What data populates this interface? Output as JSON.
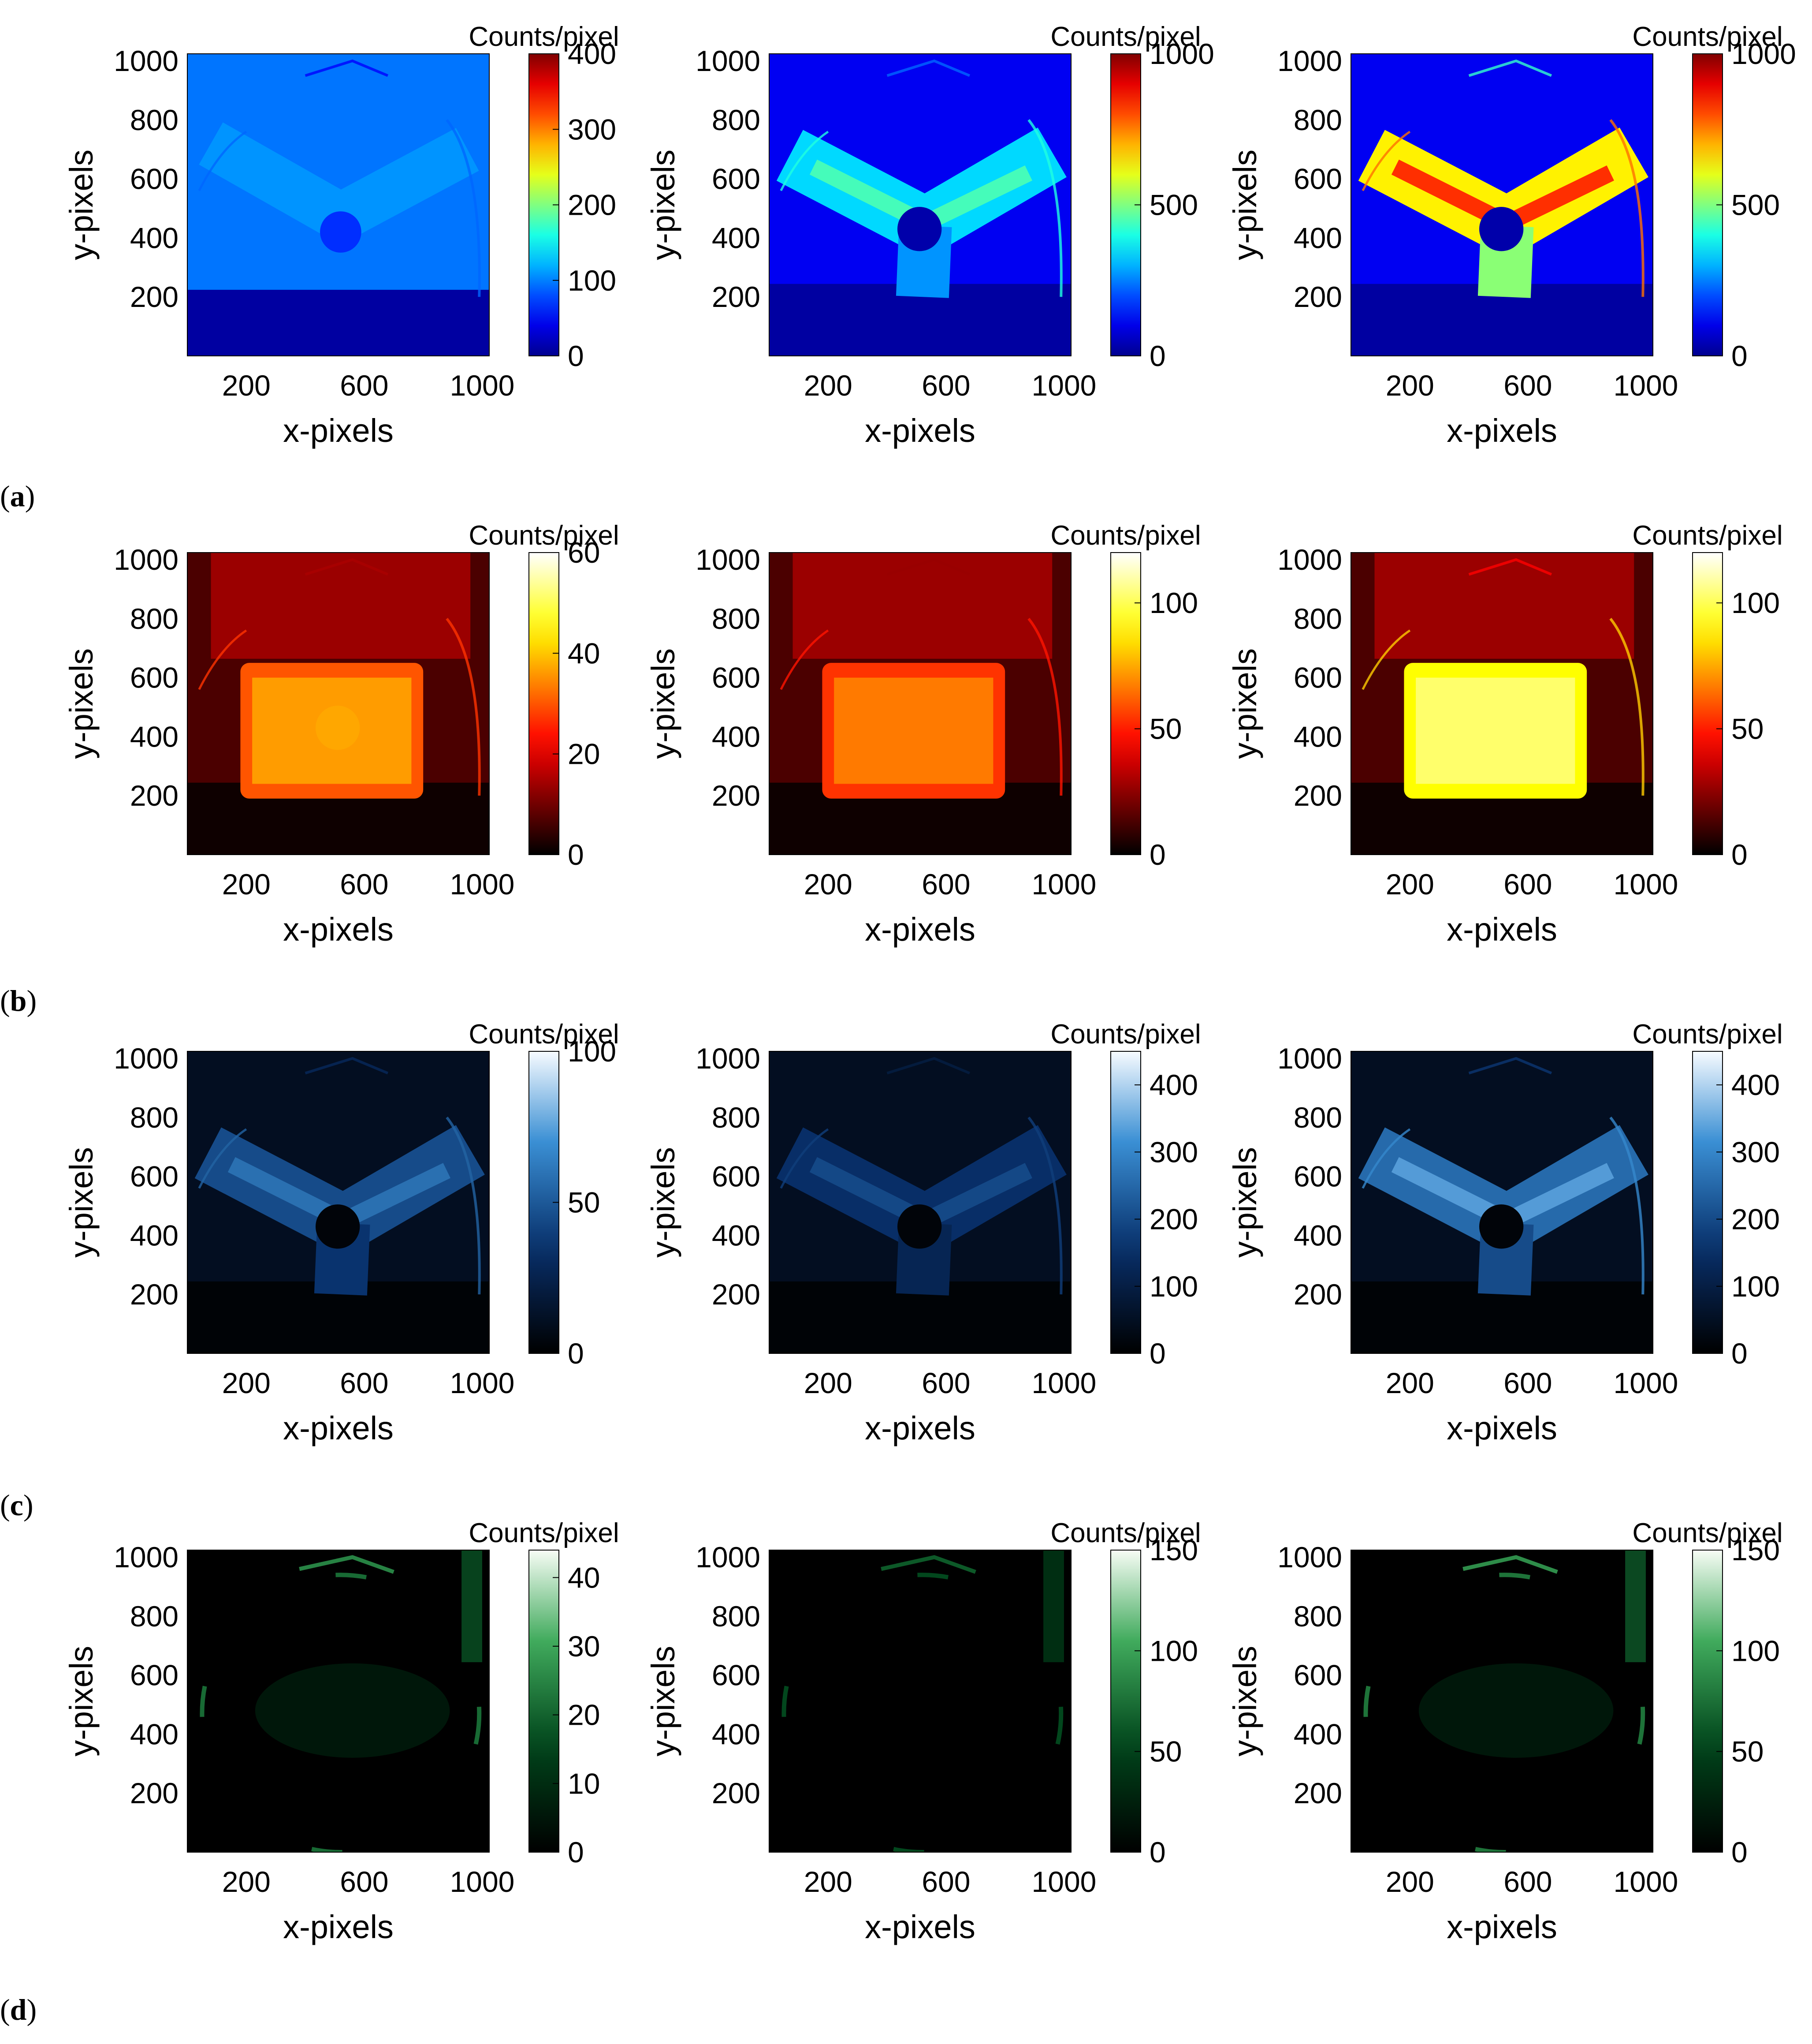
{
  "figure": {
    "row_labels": [
      "a",
      "b",
      "c",
      "d"
    ]
  },
  "chart_data": [
    {
      "type": "heatmap",
      "panel": "a-1",
      "colormap": "jet",
      "colorbar_title": "Counts/pixel",
      "colorbar_ticks": [
        0,
        100,
        200,
        300,
        400
      ],
      "clim": [
        0,
        400
      ],
      "xlabel": "x-pixels",
      "ylabel": "y-pixels",
      "xticks": [
        200,
        600,
        1000
      ],
      "yticks": [
        200,
        400,
        600,
        800,
        1000
      ],
      "xlim": [
        0,
        1024
      ],
      "ylim": [
        0,
        1024
      ],
      "feature": "uniform",
      "peak": 0.25
    },
    {
      "type": "heatmap",
      "panel": "a-2",
      "colormap": "jet",
      "colorbar_title": "Counts/pixel",
      "colorbar_ticks": [
        0,
        500,
        1000
      ],
      "clim": [
        0,
        1000
      ],
      "xlabel": "x-pixels",
      "ylabel": "y-pixels",
      "xticks": [
        200,
        600,
        1000
      ],
      "yticks": [
        200,
        400,
        600,
        800,
        1000
      ],
      "xlim": [
        0,
        1024
      ],
      "ylim": [
        0,
        1024
      ],
      "feature": "vshape",
      "peak": 0.45
    },
    {
      "type": "heatmap",
      "panel": "a-3",
      "colormap": "jet",
      "colorbar_title": "Counts/pixel",
      "colorbar_ticks": [
        0,
        500,
        1000
      ],
      "clim": [
        0,
        1000
      ],
      "xlabel": "x-pixels",
      "ylabel": "y-pixels",
      "xticks": [
        200,
        600,
        1000
      ],
      "yticks": [
        200,
        400,
        600,
        800,
        1000
      ],
      "xlim": [
        0,
        1024
      ],
      "ylim": [
        0,
        1024
      ],
      "feature": "vshape",
      "peak": 0.85
    },
    {
      "type": "heatmap",
      "panel": "b-1",
      "colormap": "hot",
      "colorbar_title": "Counts/pixel",
      "colorbar_ticks": [
        0,
        20,
        40,
        60
      ],
      "clim": [
        0,
        60
      ],
      "xlabel": "x-pixels",
      "ylabel": "y-pixels",
      "xticks": [
        200,
        600,
        1000
      ],
      "yticks": [
        200,
        400,
        600,
        800,
        1000
      ],
      "xlim": [
        0,
        1024
      ],
      "ylim": [
        0,
        1024
      ],
      "feature": "block",
      "peak": 0.5
    },
    {
      "type": "heatmap",
      "panel": "b-2",
      "colormap": "hot",
      "colorbar_title": "Counts/pixel",
      "colorbar_ticks": [
        0,
        50,
        100
      ],
      "clim": [
        0,
        120
      ],
      "xlabel": "x-pixels",
      "ylabel": "y-pixels",
      "xticks": [
        200,
        600,
        1000
      ],
      "yticks": [
        200,
        400,
        600,
        800,
        1000
      ],
      "xlim": [
        0,
        1024
      ],
      "ylim": [
        0,
        1024
      ],
      "feature": "block",
      "peak": 0.45
    },
    {
      "type": "heatmap",
      "panel": "b-3",
      "colormap": "hot",
      "colorbar_title": "Counts/pixel",
      "colorbar_ticks": [
        0,
        50,
        100
      ],
      "clim": [
        0,
        120
      ],
      "xlabel": "x-pixels",
      "ylabel": "y-pixels",
      "xticks": [
        200,
        600,
        1000
      ],
      "yticks": [
        200,
        400,
        600,
        800,
        1000
      ],
      "xlim": [
        0,
        1024
      ],
      "ylim": [
        0,
        1024
      ],
      "feature": "block",
      "peak": 0.75
    },
    {
      "type": "heatmap",
      "panel": "c-1",
      "colormap": "blues",
      "colorbar_title": "Counts/pixel",
      "colorbar_ticks": [
        0,
        50,
        100
      ],
      "clim": [
        0,
        100
      ],
      "xlabel": "x-pixels",
      "ylabel": "y-pixels",
      "xticks": [
        200,
        600,
        1000
      ],
      "yticks": [
        200,
        400,
        600,
        800,
        1000
      ],
      "xlim": [
        0,
        1024
      ],
      "ylim": [
        0,
        1024
      ],
      "feature": "vshape",
      "peak": 0.6
    },
    {
      "type": "heatmap",
      "panel": "c-2",
      "colormap": "blues",
      "colorbar_title": "Counts/pixel",
      "colorbar_ticks": [
        0,
        100,
        200,
        300,
        400
      ],
      "clim": [
        0,
        450
      ],
      "xlabel": "x-pixels",
      "ylabel": "y-pixels",
      "xticks": [
        200,
        600,
        1000
      ],
      "yticks": [
        200,
        400,
        600,
        800,
        1000
      ],
      "xlim": [
        0,
        1024
      ],
      "ylim": [
        0,
        1024
      ],
      "feature": "vshape",
      "peak": 0.45
    },
    {
      "type": "heatmap",
      "panel": "c-3",
      "colormap": "blues",
      "colorbar_title": "Counts/pixel",
      "colorbar_ticks": [
        0,
        100,
        200,
        300,
        400
      ],
      "clim": [
        0,
        450
      ],
      "xlabel": "x-pixels",
      "ylabel": "y-pixels",
      "xticks": [
        200,
        600,
        1000
      ],
      "yticks": [
        200,
        400,
        600,
        800,
        1000
      ],
      "xlim": [
        0,
        1024
      ],
      "ylim": [
        0,
        1024
      ],
      "feature": "vshape",
      "peak": 0.75
    },
    {
      "type": "heatmap",
      "panel": "d-1",
      "colormap": "greens",
      "colorbar_title": "Counts/pixel",
      "colorbar_ticks": [
        0,
        10,
        20,
        30,
        40
      ],
      "clim": [
        0,
        44
      ],
      "xlabel": "x-pixels",
      "ylabel": "y-pixels",
      "xticks": [
        200,
        600,
        1000
      ],
      "yticks": [
        200,
        400,
        600,
        800,
        1000
      ],
      "xlim": [
        0,
        1024
      ],
      "ylim": [
        0,
        1024
      ],
      "feature": "ring",
      "peak": 0.8
    },
    {
      "type": "heatmap",
      "panel": "d-2",
      "colormap": "greens",
      "colorbar_title": "Counts/pixel",
      "colorbar_ticks": [
        0,
        50,
        100,
        150
      ],
      "clim": [
        0,
        150
      ],
      "xlabel": "x-pixels",
      "ylabel": "y-pixels",
      "xticks": [
        200,
        600,
        1000
      ],
      "yticks": [
        200,
        400,
        600,
        800,
        1000
      ],
      "xlim": [
        0,
        1024
      ],
      "ylim": [
        0,
        1024
      ],
      "feature": "ring",
      "peak": 0.6
    },
    {
      "type": "heatmap",
      "panel": "d-3",
      "colormap": "greens",
      "colorbar_title": "Counts/pixel",
      "colorbar_ticks": [
        0,
        50,
        100,
        150
      ],
      "clim": [
        0,
        150
      ],
      "xlabel": "x-pixels",
      "ylabel": "y-pixels",
      "xticks": [
        200,
        600,
        1000
      ],
      "yticks": [
        200,
        400,
        600,
        800,
        1000
      ],
      "xlim": [
        0,
        1024
      ],
      "ylim": [
        0,
        1024
      ],
      "feature": "ring",
      "peak": 0.85
    }
  ]
}
